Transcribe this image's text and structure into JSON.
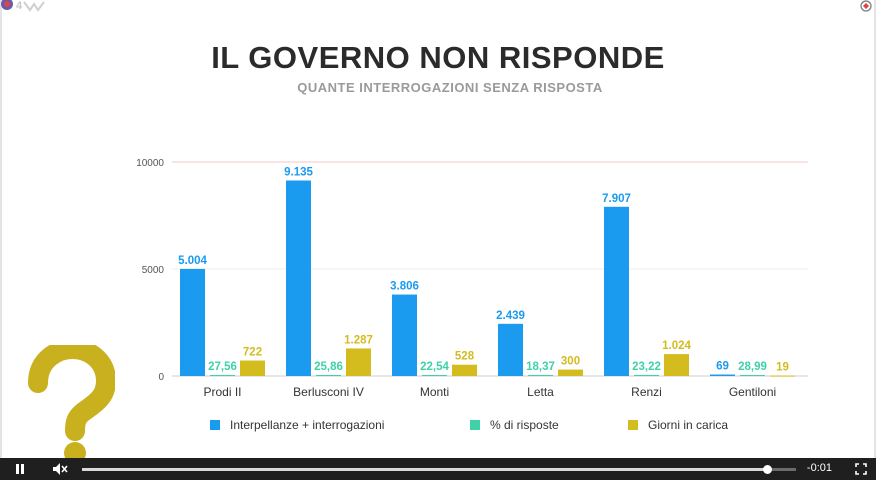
{
  "chart_data": {
    "type": "bar",
    "title": "IL GOVERNO NON RISPONDE",
    "subtitle": "QUANTE INTERROGAZIONI SENZA RISPOSTA",
    "categories": [
      "Prodi II",
      "Berlusconi IV",
      "Monti",
      "Letta",
      "Renzi",
      "Gentiloni"
    ],
    "series": [
      {
        "name": "Interpellanze + interrogazioni",
        "color": "#1a9bf0",
        "values": [
          5004,
          9135,
          3806,
          2439,
          7907,
          69
        ],
        "labels": [
          "5.004",
          "9.135",
          "3.806",
          "2.439",
          "7.907",
          "69"
        ]
      },
      {
        "name": "% di risposte",
        "color": "#3fd1a8",
        "values": [
          27.56,
          25.86,
          22.54,
          18.37,
          23.22,
          28.99
        ],
        "labels": [
          "27,56",
          "25,86",
          "22,54",
          "18,37",
          "23,22",
          "28,99"
        ]
      },
      {
        "name": "Giorni in carica",
        "color": "#d4bb1e",
        "values": [
          722,
          1287,
          528,
          300,
          1024,
          19
        ],
        "labels": [
          "722",
          "1.287",
          "528",
          "300",
          "1.024",
          "19"
        ]
      }
    ],
    "yticks": [
      0,
      5000,
      10000
    ],
    "ylim": [
      0,
      10000
    ],
    "grid": true,
    "legend": "bottom"
  },
  "player": {
    "time": "-0:01",
    "progress": 0.96
  },
  "icons": {
    "pause": "pause-icon",
    "mute": "muted-speaker-icon",
    "fullscreen": "fullscreen-icon",
    "question": "question-mark-icon",
    "logo": "channel-logo-icon"
  }
}
